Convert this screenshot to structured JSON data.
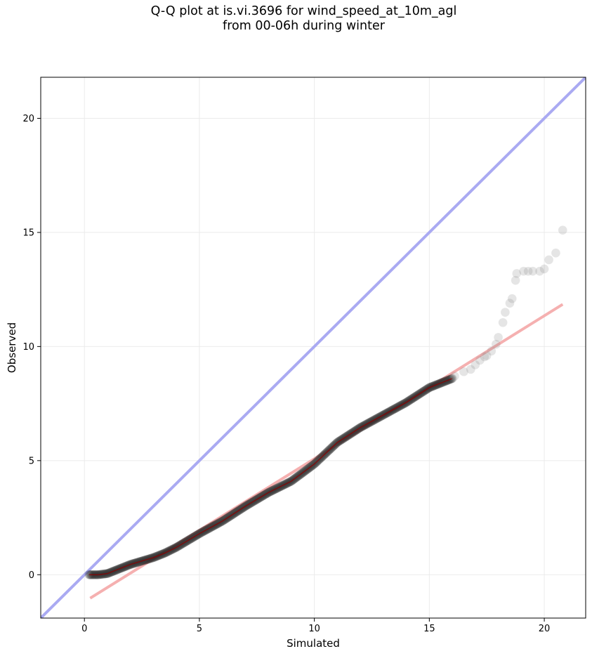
{
  "chart_data": {
    "type": "scatter",
    "title": "Q-Q plot at is.vi.3696 for wind_speed_at_10m_agl",
    "subtitle": "from 00-06h during winter",
    "xlabel": "Simulated",
    "ylabel": "Observed",
    "xlim": [
      -1.9,
      21.8
    ],
    "ylim": [
      -1.9,
      21.8
    ],
    "xticks": [
      0,
      5,
      10,
      15,
      20
    ],
    "yticks": [
      0,
      5,
      10,
      15,
      20
    ],
    "grid": true,
    "reference_line": {
      "from": [
        -1.9,
        -1.9
      ],
      "to": [
        21.8,
        21.8
      ],
      "color": "#aaaaf2"
    },
    "fit_line": {
      "from": [
        0.25,
        -1.03
      ],
      "to": [
        20.8,
        11.85
      ],
      "color": "#f4a7a7"
    },
    "point_color": "#222222",
    "trend_color": "#8b0000",
    "quantile_trace": [
      [
        0.2,
        0.0
      ],
      [
        0.6,
        0.0
      ],
      [
        1.0,
        0.05
      ],
      [
        1.5,
        0.25
      ],
      [
        2.0,
        0.45
      ],
      [
        2.5,
        0.6
      ],
      [
        3.0,
        0.75
      ],
      [
        3.5,
        0.95
      ],
      [
        4.0,
        1.2
      ],
      [
        4.5,
        1.5
      ],
      [
        5.0,
        1.8
      ],
      [
        6.0,
        2.35
      ],
      [
        7.0,
        3.0
      ],
      [
        8.0,
        3.6
      ],
      [
        9.0,
        4.1
      ],
      [
        10.0,
        4.85
      ],
      [
        11.0,
        5.8
      ],
      [
        12.0,
        6.45
      ],
      [
        13.0,
        7.0
      ],
      [
        14.0,
        7.55
      ],
      [
        15.0,
        8.2
      ],
      [
        16.0,
        8.6
      ]
    ],
    "tail_points": [
      [
        16.1,
        8.7
      ],
      [
        16.5,
        8.9
      ],
      [
        16.8,
        9.0
      ],
      [
        17.0,
        9.2
      ],
      [
        17.2,
        9.4
      ],
      [
        17.4,
        9.55
      ],
      [
        17.5,
        9.6
      ],
      [
        17.7,
        9.8
      ],
      [
        17.9,
        10.1
      ],
      [
        18.0,
        10.4
      ],
      [
        18.2,
        11.05
      ],
      [
        18.3,
        11.5
      ],
      [
        18.5,
        11.9
      ],
      [
        18.6,
        12.1
      ],
      [
        18.75,
        12.9
      ],
      [
        18.8,
        13.2
      ],
      [
        19.1,
        13.3
      ],
      [
        19.3,
        13.3
      ],
      [
        19.5,
        13.3
      ],
      [
        19.8,
        13.3
      ],
      [
        20.0,
        13.4
      ],
      [
        20.2,
        13.8
      ],
      [
        20.5,
        14.1
      ],
      [
        20.8,
        15.1
      ]
    ]
  }
}
